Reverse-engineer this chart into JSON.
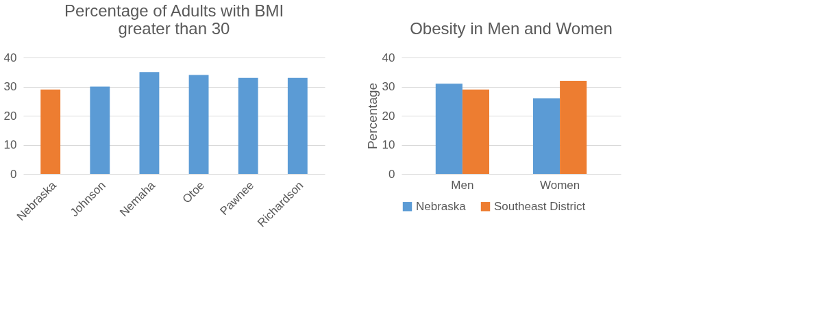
{
  "chart_data": [
    {
      "type": "bar",
      "title": [
        "Percentage of Adults with BMI",
        "greater than 30"
      ],
      "categories": [
        "Nebraska",
        "Johnson",
        "Nemaha",
        "Otoe",
        "Pawnee",
        "Richardson"
      ],
      "values": [
        29,
        30,
        35,
        34,
        33,
        33
      ],
      "colors": [
        "#ed7d31",
        "#5b9bd5",
        "#5b9bd5",
        "#5b9bd5",
        "#5b9bd5",
        "#5b9bd5"
      ],
      "ylim": [
        0,
        40
      ],
      "yticks": [
        0,
        10,
        20,
        30,
        40
      ],
      "grid": "y"
    },
    {
      "type": "bar",
      "title": "Obesity in Men and Women",
      "ylabel": "Percentage",
      "categories": [
        "Men",
        "Women"
      ],
      "series": [
        {
          "name": "Nebraska",
          "color": "#5b9bd5",
          "values": [
            31,
            26
          ]
        },
        {
          "name": "Southeast District",
          "color": "#ed7d31",
          "values": [
            29,
            32
          ]
        }
      ],
      "ylim": [
        0,
        40
      ],
      "yticks": [
        0,
        10,
        20,
        30,
        40
      ],
      "grid": "y",
      "legend": "bottom"
    }
  ]
}
